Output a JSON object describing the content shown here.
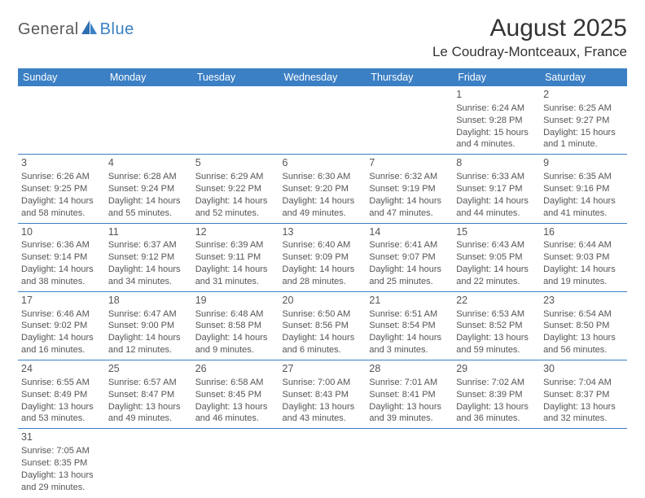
{
  "logo": {
    "part1": "General",
    "part2": "Blue"
  },
  "title": "August 2025",
  "location": "Le Coudray-Montceaux, France",
  "colors": {
    "header_bg": "#3b7fc4",
    "header_text": "#ffffff",
    "row_border": "#3b7fc4",
    "text": "#555555",
    "logo_gray": "#5a5a5a",
    "logo_blue": "#3b7fc4"
  },
  "weekdays": [
    "Sunday",
    "Monday",
    "Tuesday",
    "Wednesday",
    "Thursday",
    "Friday",
    "Saturday"
  ],
  "weeks": [
    [
      null,
      null,
      null,
      null,
      null,
      {
        "n": "1",
        "sr": "Sunrise: 6:24 AM",
        "ss": "Sunset: 9:28 PM",
        "d1": "Daylight: 15 hours",
        "d2": "and 4 minutes."
      },
      {
        "n": "2",
        "sr": "Sunrise: 6:25 AM",
        "ss": "Sunset: 9:27 PM",
        "d1": "Daylight: 15 hours",
        "d2": "and 1 minute."
      }
    ],
    [
      {
        "n": "3",
        "sr": "Sunrise: 6:26 AM",
        "ss": "Sunset: 9:25 PM",
        "d1": "Daylight: 14 hours",
        "d2": "and 58 minutes."
      },
      {
        "n": "4",
        "sr": "Sunrise: 6:28 AM",
        "ss": "Sunset: 9:24 PM",
        "d1": "Daylight: 14 hours",
        "d2": "and 55 minutes."
      },
      {
        "n": "5",
        "sr": "Sunrise: 6:29 AM",
        "ss": "Sunset: 9:22 PM",
        "d1": "Daylight: 14 hours",
        "d2": "and 52 minutes."
      },
      {
        "n": "6",
        "sr": "Sunrise: 6:30 AM",
        "ss": "Sunset: 9:20 PM",
        "d1": "Daylight: 14 hours",
        "d2": "and 49 minutes."
      },
      {
        "n": "7",
        "sr": "Sunrise: 6:32 AM",
        "ss": "Sunset: 9:19 PM",
        "d1": "Daylight: 14 hours",
        "d2": "and 47 minutes."
      },
      {
        "n": "8",
        "sr": "Sunrise: 6:33 AM",
        "ss": "Sunset: 9:17 PM",
        "d1": "Daylight: 14 hours",
        "d2": "and 44 minutes."
      },
      {
        "n": "9",
        "sr": "Sunrise: 6:35 AM",
        "ss": "Sunset: 9:16 PM",
        "d1": "Daylight: 14 hours",
        "d2": "and 41 minutes."
      }
    ],
    [
      {
        "n": "10",
        "sr": "Sunrise: 6:36 AM",
        "ss": "Sunset: 9:14 PM",
        "d1": "Daylight: 14 hours",
        "d2": "and 38 minutes."
      },
      {
        "n": "11",
        "sr": "Sunrise: 6:37 AM",
        "ss": "Sunset: 9:12 PM",
        "d1": "Daylight: 14 hours",
        "d2": "and 34 minutes."
      },
      {
        "n": "12",
        "sr": "Sunrise: 6:39 AM",
        "ss": "Sunset: 9:11 PM",
        "d1": "Daylight: 14 hours",
        "d2": "and 31 minutes."
      },
      {
        "n": "13",
        "sr": "Sunrise: 6:40 AM",
        "ss": "Sunset: 9:09 PM",
        "d1": "Daylight: 14 hours",
        "d2": "and 28 minutes."
      },
      {
        "n": "14",
        "sr": "Sunrise: 6:41 AM",
        "ss": "Sunset: 9:07 PM",
        "d1": "Daylight: 14 hours",
        "d2": "and 25 minutes."
      },
      {
        "n": "15",
        "sr": "Sunrise: 6:43 AM",
        "ss": "Sunset: 9:05 PM",
        "d1": "Daylight: 14 hours",
        "d2": "and 22 minutes."
      },
      {
        "n": "16",
        "sr": "Sunrise: 6:44 AM",
        "ss": "Sunset: 9:03 PM",
        "d1": "Daylight: 14 hours",
        "d2": "and 19 minutes."
      }
    ],
    [
      {
        "n": "17",
        "sr": "Sunrise: 6:46 AM",
        "ss": "Sunset: 9:02 PM",
        "d1": "Daylight: 14 hours",
        "d2": "and 16 minutes."
      },
      {
        "n": "18",
        "sr": "Sunrise: 6:47 AM",
        "ss": "Sunset: 9:00 PM",
        "d1": "Daylight: 14 hours",
        "d2": "and 12 minutes."
      },
      {
        "n": "19",
        "sr": "Sunrise: 6:48 AM",
        "ss": "Sunset: 8:58 PM",
        "d1": "Daylight: 14 hours",
        "d2": "and 9 minutes."
      },
      {
        "n": "20",
        "sr": "Sunrise: 6:50 AM",
        "ss": "Sunset: 8:56 PM",
        "d1": "Daylight: 14 hours",
        "d2": "and 6 minutes."
      },
      {
        "n": "21",
        "sr": "Sunrise: 6:51 AM",
        "ss": "Sunset: 8:54 PM",
        "d1": "Daylight: 14 hours",
        "d2": "and 3 minutes."
      },
      {
        "n": "22",
        "sr": "Sunrise: 6:53 AM",
        "ss": "Sunset: 8:52 PM",
        "d1": "Daylight: 13 hours",
        "d2": "and 59 minutes."
      },
      {
        "n": "23",
        "sr": "Sunrise: 6:54 AM",
        "ss": "Sunset: 8:50 PM",
        "d1": "Daylight: 13 hours",
        "d2": "and 56 minutes."
      }
    ],
    [
      {
        "n": "24",
        "sr": "Sunrise: 6:55 AM",
        "ss": "Sunset: 8:49 PM",
        "d1": "Daylight: 13 hours",
        "d2": "and 53 minutes."
      },
      {
        "n": "25",
        "sr": "Sunrise: 6:57 AM",
        "ss": "Sunset: 8:47 PM",
        "d1": "Daylight: 13 hours",
        "d2": "and 49 minutes."
      },
      {
        "n": "26",
        "sr": "Sunrise: 6:58 AM",
        "ss": "Sunset: 8:45 PM",
        "d1": "Daylight: 13 hours",
        "d2": "and 46 minutes."
      },
      {
        "n": "27",
        "sr": "Sunrise: 7:00 AM",
        "ss": "Sunset: 8:43 PM",
        "d1": "Daylight: 13 hours",
        "d2": "and 43 minutes."
      },
      {
        "n": "28",
        "sr": "Sunrise: 7:01 AM",
        "ss": "Sunset: 8:41 PM",
        "d1": "Daylight: 13 hours",
        "d2": "and 39 minutes."
      },
      {
        "n": "29",
        "sr": "Sunrise: 7:02 AM",
        "ss": "Sunset: 8:39 PM",
        "d1": "Daylight: 13 hours",
        "d2": "and 36 minutes."
      },
      {
        "n": "30",
        "sr": "Sunrise: 7:04 AM",
        "ss": "Sunset: 8:37 PM",
        "d1": "Daylight: 13 hours",
        "d2": "and 32 minutes."
      }
    ],
    [
      {
        "n": "31",
        "sr": "Sunrise: 7:05 AM",
        "ss": "Sunset: 8:35 PM",
        "d1": "Daylight: 13 hours",
        "d2": "and 29 minutes."
      },
      null,
      null,
      null,
      null,
      null,
      null
    ]
  ]
}
